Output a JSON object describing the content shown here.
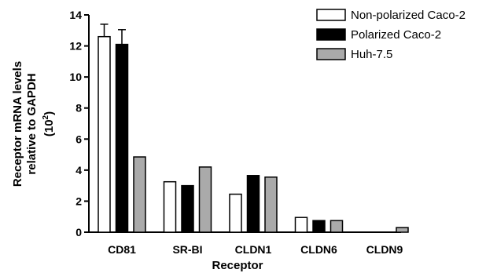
{
  "chart_data": {
    "type": "bar",
    "categories": [
      "CD81",
      "SR-BI",
      "CLDN1",
      "CLDN6",
      "CLDN9"
    ],
    "series": [
      {
        "name": "Non-polarized Caco-2",
        "color": "#ffffff",
        "values": [
          12.6,
          3.25,
          2.45,
          0.95,
          0
        ],
        "errors": [
          0.8,
          0,
          0,
          0,
          0
        ]
      },
      {
        "name": "Polarized Caco-2",
        "color": "#000000",
        "values": [
          12.1,
          3.0,
          3.65,
          0.75,
          0
        ],
        "errors": [
          0.95,
          0,
          0,
          0,
          0
        ]
      },
      {
        "name": "Huh-7.5",
        "color": "#aaaaaa",
        "values": [
          4.85,
          4.2,
          3.55,
          0.75,
          0.3
        ],
        "errors": [
          0,
          0,
          0,
          0,
          0
        ]
      }
    ],
    "yticks": [
      "0",
      "2",
      "4",
      "6",
      "8",
      "10",
      "12",
      "14"
    ],
    "ylim": [
      0,
      14
    ],
    "xlabel": "Receptor",
    "ylabel_lines": [
      "Receptor mRNA levels",
      "relative to GAPDH"
    ],
    "ylabel_unit": {
      "base": "(10",
      "sup": "2",
      "close": ")"
    },
    "legend_position": "top-right",
    "grid": false
  }
}
